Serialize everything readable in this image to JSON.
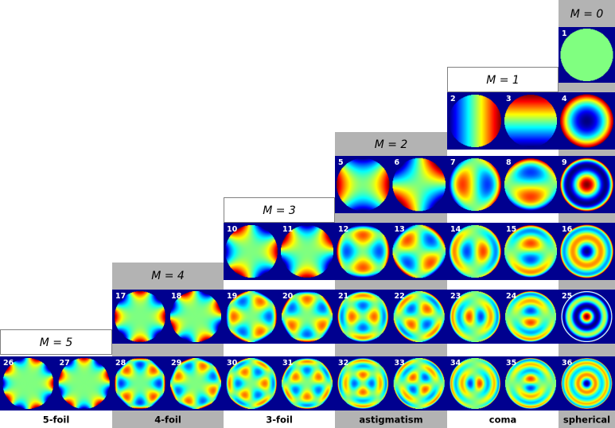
{
  "groups": [
    {
      "id": "m5",
      "label": "M = 5",
      "bottom_label": "5-foil"
    },
    {
      "id": "m4",
      "label": "M = 4",
      "bottom_label": "4-foil"
    },
    {
      "id": "m3",
      "label": "M = 3",
      "bottom_label": "3-foil"
    },
    {
      "id": "m2",
      "label": "M = 2",
      "bottom_label": "astigmatism"
    },
    {
      "id": "m1",
      "label": "M = 1",
      "bottom_label": "coma"
    },
    {
      "id": "m0",
      "label": "M = 0",
      "bottom_label": "spherical"
    }
  ],
  "colors": {
    "background": "#00008f",
    "gray": "#b3b3b3",
    "colormap": "jet",
    "piston": "#80ff80"
  },
  "modes": [
    {
      "index": "1",
      "m": 0,
      "n": 0,
      "kind": "radial"
    },
    {
      "index": "2",
      "m": 1,
      "n": 1,
      "kind": "cos"
    },
    {
      "index": "3",
      "m": 1,
      "n": 1,
      "kind": "sin"
    },
    {
      "index": "4",
      "m": 0,
      "n": 2,
      "kind": "radial"
    },
    {
      "index": "5",
      "m": 2,
      "n": 2,
      "kind": "cos"
    },
    {
      "index": "6",
      "m": 2,
      "n": 2,
      "kind": "sin"
    },
    {
      "index": "7",
      "m": 1,
      "n": 3,
      "kind": "cos"
    },
    {
      "index": "8",
      "m": 1,
      "n": 3,
      "kind": "sin"
    },
    {
      "index": "9",
      "m": 0,
      "n": 4,
      "kind": "radial"
    },
    {
      "index": "10",
      "m": 3,
      "n": 3,
      "kind": "cos"
    },
    {
      "index": "11",
      "m": 3,
      "n": 3,
      "kind": "sin"
    },
    {
      "index": "12",
      "m": 2,
      "n": 4,
      "kind": "cos"
    },
    {
      "index": "13",
      "m": 2,
      "n": 4,
      "kind": "sin"
    },
    {
      "index": "14",
      "m": 1,
      "n": 5,
      "kind": "cos"
    },
    {
      "index": "15",
      "m": 1,
      "n": 5,
      "kind": "sin"
    },
    {
      "index": "16",
      "m": 0,
      "n": 6,
      "kind": "radial"
    },
    {
      "index": "17",
      "m": 4,
      "n": 4,
      "kind": "cos"
    },
    {
      "index": "18",
      "m": 4,
      "n": 4,
      "kind": "sin"
    },
    {
      "index": "19",
      "m": 3,
      "n": 5,
      "kind": "cos"
    },
    {
      "index": "20",
      "m": 3,
      "n": 5,
      "kind": "sin"
    },
    {
      "index": "21",
      "m": 2,
      "n": 6,
      "kind": "cos"
    },
    {
      "index": "22",
      "m": 2,
      "n": 6,
      "kind": "sin"
    },
    {
      "index": "23",
      "m": 1,
      "n": 7,
      "kind": "cos"
    },
    {
      "index": "24",
      "m": 1,
      "n": 7,
      "kind": "sin"
    },
    {
      "index": "25",
      "m": 0,
      "n": 8,
      "kind": "radial"
    },
    {
      "index": "26",
      "m": 5,
      "n": 5,
      "kind": "cos"
    },
    {
      "index": "27",
      "m": 5,
      "n": 5,
      "kind": "sin"
    },
    {
      "index": "28",
      "m": 4,
      "n": 6,
      "kind": "cos"
    },
    {
      "index": "29",
      "m": 4,
      "n": 6,
      "kind": "sin"
    },
    {
      "index": "30",
      "m": 3,
      "n": 7,
      "kind": "cos"
    },
    {
      "index": "31",
      "m": 3,
      "n": 7,
      "kind": "sin"
    },
    {
      "index": "32",
      "m": 2,
      "n": 8,
      "kind": "cos"
    },
    {
      "index": "33",
      "m": 2,
      "n": 8,
      "kind": "sin"
    },
    {
      "index": "34",
      "m": 1,
      "n": 9,
      "kind": "cos"
    },
    {
      "index": "35",
      "m": 1,
      "n": 9,
      "kind": "sin"
    },
    {
      "index": "36",
      "m": 0,
      "n": 10,
      "kind": "radial"
    }
  ]
}
